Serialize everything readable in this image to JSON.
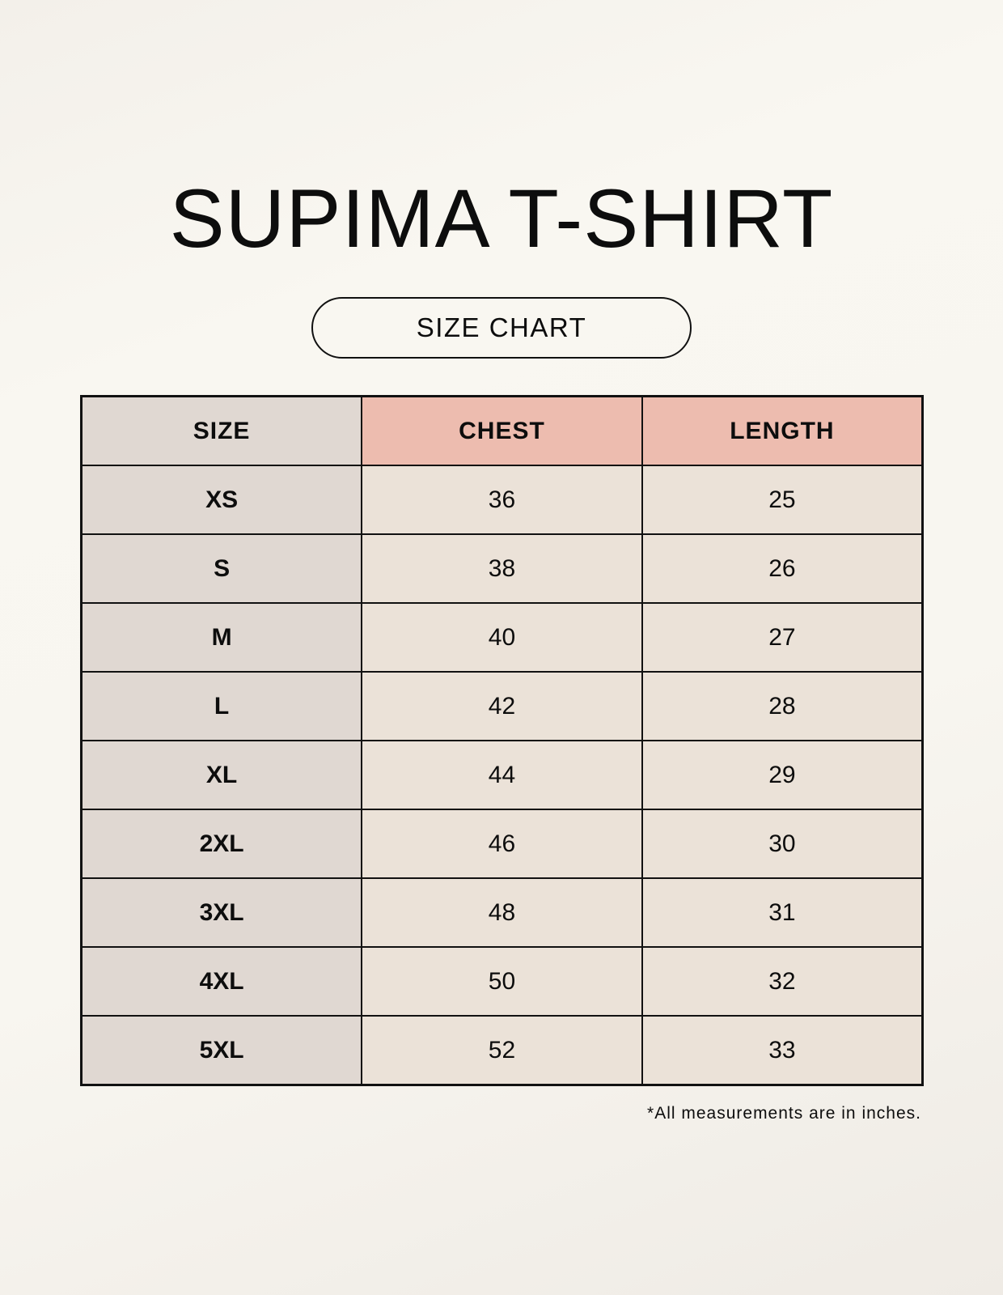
{
  "title": "SUPIMA T-SHIRT",
  "subtitle": "SIZE CHART",
  "colors": {
    "size_column": "#e0d8d2",
    "measure_header": "#edbcaf",
    "value_cells": "#ebe2d8"
  },
  "table": {
    "headers": [
      "SIZE",
      "CHEST",
      "LENGTH"
    ],
    "rows": [
      [
        "XS",
        "36",
        "25"
      ],
      [
        "S",
        "38",
        "26"
      ],
      [
        "M",
        "40",
        "27"
      ],
      [
        "L",
        "42",
        "28"
      ],
      [
        "XL",
        "44",
        "29"
      ],
      [
        "2XL",
        "46",
        "30"
      ],
      [
        "3XL",
        "48",
        "31"
      ],
      [
        "4XL",
        "50",
        "32"
      ],
      [
        "5XL",
        "52",
        "33"
      ]
    ]
  },
  "footnote": "*All measurements are in inches."
}
